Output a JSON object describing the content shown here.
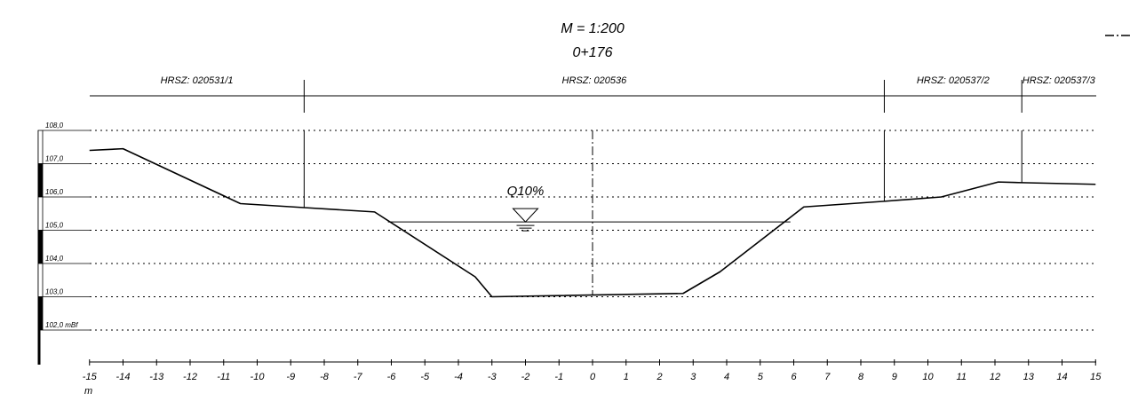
{
  "header": {
    "scale": "M = 1:200",
    "station": "0+176"
  },
  "parcels": [
    {
      "label": "HRSZ: 020531/1",
      "from": -15,
      "to": -8.6
    },
    {
      "label": "HRSZ: 020536",
      "from": -8.6,
      "to": 8.7
    },
    {
      "label": "HRSZ: 020537/2",
      "from": 8.7,
      "to": 12.8
    },
    {
      "label": "HRSZ: 020537/3",
      "from": 12.8,
      "to": 15
    }
  ],
  "water_level": {
    "label": "Q10%",
    "elevation": 105.25,
    "from": -6.1,
    "to": 5.9,
    "symbol_x": -2
  },
  "elevations": [
    {
      "value": 108.0,
      "label": "108,0"
    },
    {
      "value": 107.0,
      "label": "107,0"
    },
    {
      "value": 106.0,
      "label": "106,0"
    },
    {
      "value": 105.0,
      "label": "105,0"
    },
    {
      "value": 104.0,
      "label": "104,0"
    },
    {
      "value": 103.0,
      "label": "103,0"
    },
    {
      "value": 102.0,
      "label": "102,0 mBf"
    }
  ],
  "x_axis": {
    "unit": "m",
    "ticks": [
      {
        "value": -15,
        "label": "-15"
      },
      {
        "value": -14,
        "label": "-14"
      },
      {
        "value": -13,
        "label": "-13"
      },
      {
        "value": -12,
        "label": "-12"
      },
      {
        "value": -11,
        "label": "-11"
      },
      {
        "value": -10,
        "label": "-10"
      },
      {
        "value": -9,
        "label": "-9"
      },
      {
        "value": -8,
        "label": "-8"
      },
      {
        "value": -7,
        "label": "-7"
      },
      {
        "value": -6,
        "label": "-6"
      },
      {
        "value": -5,
        "label": "-5"
      },
      {
        "value": -4,
        "label": "-4"
      },
      {
        "value": -3,
        "label": "-3"
      },
      {
        "value": -2,
        "label": "-2"
      },
      {
        "value": -1,
        "label": "-1"
      },
      {
        "value": 0,
        "label": "0"
      },
      {
        "value": 1,
        "label": "1"
      },
      {
        "value": 2,
        "label": "2"
      },
      {
        "value": 3,
        "label": "3"
      },
      {
        "value": 4,
        "label": "4"
      },
      {
        "value": 5,
        "label": "5"
      },
      {
        "value": 6,
        "label": "6"
      },
      {
        "value": 7,
        "label": "7"
      },
      {
        "value": 8,
        "label": "8"
      },
      {
        "value": 9,
        "label": "9"
      },
      {
        "value": 10,
        "label": "10"
      },
      {
        "value": 11,
        "label": "11"
      },
      {
        "value": 12,
        "label": "12"
      },
      {
        "value": 13,
        "label": "13"
      },
      {
        "value": 14,
        "label": "14"
      },
      {
        "value": 15,
        "label": "15"
      }
    ]
  },
  "ground_profile": [
    [
      -15,
      107.4
    ],
    [
      -14,
      107.45
    ],
    [
      -10.5,
      105.8
    ],
    [
      -8.6,
      105.68
    ],
    [
      -6.5,
      105.55
    ],
    [
      -3.5,
      103.6
    ],
    [
      -3.0,
      103.0
    ],
    [
      2.7,
      103.1
    ],
    [
      3.8,
      103.75
    ],
    [
      6.3,
      105.7
    ],
    [
      8.7,
      105.87
    ],
    [
      10.4,
      106.0
    ],
    [
      12.1,
      106.45
    ],
    [
      12.8,
      106.43
    ],
    [
      15,
      106.38
    ]
  ]
}
